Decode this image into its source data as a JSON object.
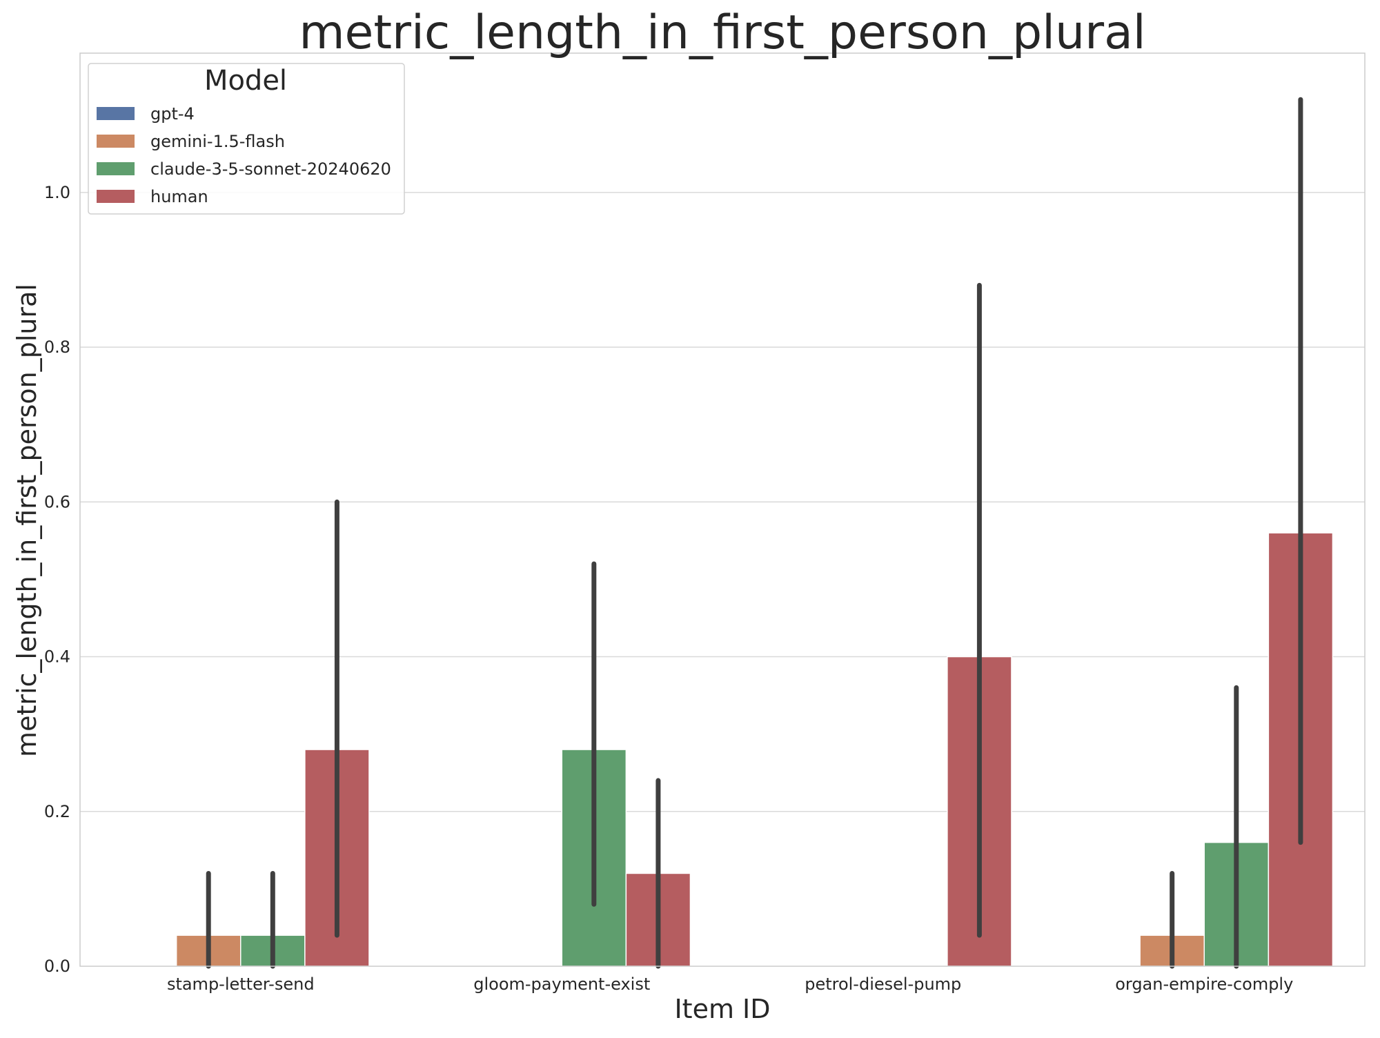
{
  "chart_data": {
    "type": "bar",
    "title": "metric_length_in_first_person_plural",
    "xlabel": "Item ID",
    "ylabel": "metric_length_in_first_person_plural",
    "ylim": [
      0,
      1.18
    ],
    "yticks": [
      0.0,
      0.2,
      0.4,
      0.6,
      0.8,
      1.0
    ],
    "ytick_labels": [
      "0.0",
      "0.2",
      "0.4",
      "0.6",
      "0.8",
      "1.0"
    ],
    "grid": true,
    "legend": {
      "title": "Model",
      "placement": "top-left"
    },
    "categories": [
      "stamp-letter-send",
      "gloom-payment-exist",
      "petrol-diesel-pump",
      "organ-empire-comply"
    ],
    "series": [
      {
        "name": "gpt-4",
        "color": "#5875a4",
        "values": [
          0.0,
          0.0,
          0.0,
          0.0
        ],
        "ci_low": [
          null,
          null,
          null,
          null
        ],
        "ci_high": [
          null,
          null,
          null,
          null
        ]
      },
      {
        "name": "gemini-1.5-flash",
        "color": "#cc8963",
        "values": [
          0.04,
          0.0,
          0.0,
          0.04
        ],
        "ci_low": [
          0.0,
          null,
          null,
          0.0
        ],
        "ci_high": [
          0.12,
          null,
          null,
          0.12
        ]
      },
      {
        "name": "claude-3-5-sonnet-20240620",
        "color": "#5f9e6e",
        "values": [
          0.04,
          0.28,
          0.0,
          0.16
        ],
        "ci_low": [
          0.0,
          0.08,
          null,
          0.0
        ],
        "ci_high": [
          0.12,
          0.52,
          null,
          0.36
        ]
      },
      {
        "name": "human",
        "color": "#b55d60",
        "values": [
          0.28,
          0.12,
          0.4,
          0.56
        ],
        "ci_low": [
          0.04,
          0.0,
          0.04,
          0.16
        ],
        "ci_high": [
          0.6,
          0.24,
          0.88,
          1.12
        ]
      }
    ]
  }
}
